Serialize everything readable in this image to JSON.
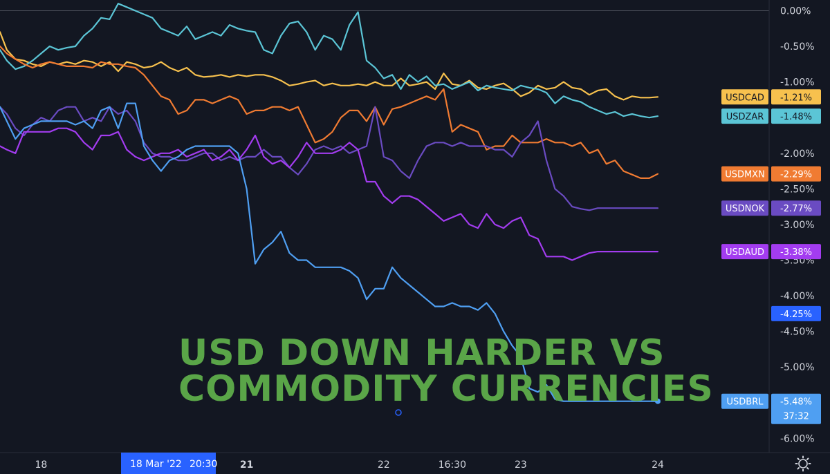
{
  "headline": {
    "line1": "USD DOWN HARDER VS",
    "line2": "COMMODITY CURRENCIES"
  },
  "crosshair": {
    "date_label": "18 Mar '22",
    "time_label": "20:30"
  },
  "countdown": "37:32",
  "colors": {
    "background": "#131722",
    "headline": "#5aa548",
    "USDCAD": "#f7c14e",
    "USDZAR": "#5bc5d6",
    "USDMXN": "#f07b32",
    "USDNOK": "#6a4bc2",
    "USDAUD": "#a33cf0",
    "USDBRL": "#4f9ff2",
    "crosshair_label": "#2962ff"
  },
  "settings_icon": "gear-icon",
  "chart_data": {
    "type": "line",
    "title": "USD DOWN HARDER VS COMMODITY CURRENCIES",
    "x_ticks": [
      {
        "label": "18",
        "x": 0,
        "bold": false
      },
      {
        "label": "21",
        "x": 12,
        "bold": true
      },
      {
        "label": "22",
        "x": 20,
        "bold": false
      },
      {
        "label": "16:30",
        "x": 24,
        "bold": false
      },
      {
        "label": "23",
        "x": 28,
        "bold": false
      },
      {
        "label": "24",
        "x": 36,
        "bold": false
      }
    ],
    "y_ticks": [
      "0.00%",
      "-0.50%",
      "-1.00%",
      "-2.00%",
      "-2.50%",
      "-3.00%",
      "-3.50%",
      "-4.00%",
      "-4.50%",
      "-5.00%",
      "-6.00%"
    ],
    "y_tick_values": [
      0,
      -0.5,
      -1.0,
      -2.0,
      -2.5,
      -3.0,
      -3.5,
      -4.0,
      -4.5,
      -5.0,
      -6.0
    ],
    "ylim": [
      -6.2,
      0.15
    ],
    "xlim": [
      -2.4,
      42.5
    ],
    "series": [
      {
        "name": "USDCAD",
        "last": "-1.21%",
        "last_value": -1.21,
        "x": [
          -2.4,
          -2,
          -1.5,
          -1,
          -0.5,
          0,
          0.5,
          1,
          1.5,
          2,
          2.5,
          3,
          3.5,
          4,
          4.5,
          5,
          5.5,
          6,
          6.5,
          7,
          7.5,
          8,
          8.5,
          9,
          9.5,
          10,
          10.5,
          11,
          11.5,
          12,
          12.5,
          13,
          13.5,
          14,
          14.5,
          15,
          15.5,
          16,
          16.5,
          17,
          17.5,
          18,
          18.5,
          19,
          19.5,
          20,
          20.5,
          21,
          21.5,
          22,
          22.5,
          23,
          23.5,
          24,
          24.5,
          25,
          25.5,
          26,
          26.5,
          27,
          27.5,
          28,
          28.5,
          29,
          29.5,
          30,
          30.5,
          31,
          31.5,
          32,
          32.5,
          33,
          33.5,
          34,
          34.5,
          35,
          35.5,
          36
        ],
        "y": [
          -0.3,
          -0.55,
          -0.68,
          -0.7,
          -0.75,
          -0.78,
          -0.72,
          -0.75,
          -0.72,
          -0.75,
          -0.7,
          -0.72,
          -0.78,
          -0.72,
          -0.85,
          -0.72,
          -0.75,
          -0.8,
          -0.78,
          -0.72,
          -0.8,
          -0.85,
          -0.8,
          -0.9,
          -0.93,
          -0.92,
          -0.9,
          -0.93,
          -0.9,
          -0.92,
          -0.9,
          -0.9,
          -0.93,
          -0.98,
          -1.05,
          -1.03,
          -1.0,
          -0.98,
          -1.05,
          -1.02,
          -1.05,
          -1.05,
          -1.03,
          -1.05,
          -1.0,
          -1.05,
          -1.05,
          -0.95,
          -1.05,
          -1.03,
          -1.0,
          -1.1,
          -0.88,
          -1.03,
          -1.05,
          -0.98,
          -1.08,
          -1.1,
          -1.05,
          -1.02,
          -1.1,
          -1.2,
          -1.15,
          -1.05,
          -1.1,
          -1.08,
          -1.0,
          -1.08,
          -1.1,
          -1.18,
          -1.12,
          -1.1,
          -1.2,
          -1.25,
          -1.2,
          -1.22,
          -1.22,
          -1.21
        ]
      },
      {
        "name": "USDZAR",
        "last": "-1.48%",
        "last_value": -1.48,
        "x": [
          -2.4,
          -2,
          -1.5,
          -1,
          -0.5,
          0,
          0.5,
          1,
          1.5,
          2,
          2.5,
          3,
          3.5,
          4,
          4.5,
          5,
          5.5,
          6,
          6.5,
          7,
          7.5,
          8,
          8.5,
          9,
          9.5,
          10,
          10.5,
          11,
          11.5,
          12,
          12.5,
          13,
          13.5,
          14,
          14.5,
          15,
          15.5,
          16,
          16.5,
          17,
          17.5,
          18,
          18.5,
          19,
          19.5,
          20,
          20.5,
          21,
          21.5,
          22,
          22.5,
          23,
          23.5,
          24,
          24.5,
          25,
          25.5,
          26,
          26.5,
          27,
          27.5,
          28,
          28.5,
          29,
          29.5,
          30,
          30.5,
          31,
          31.5,
          32,
          32.5,
          33,
          33.5,
          34,
          34.5,
          35,
          35.5,
          36
        ],
        "y": [
          -0.55,
          -0.7,
          -0.82,
          -0.78,
          -0.7,
          -0.6,
          -0.5,
          -0.55,
          -0.52,
          -0.5,
          -0.35,
          -0.25,
          -0.1,
          -0.12,
          0.1,
          0.05,
          0.0,
          -0.05,
          -0.1,
          -0.25,
          -0.3,
          -0.35,
          -0.22,
          -0.4,
          -0.35,
          -0.3,
          -0.35,
          -0.2,
          -0.25,
          -0.28,
          -0.3,
          -0.55,
          -0.6,
          -0.35,
          -0.18,
          -0.15,
          -0.3,
          -0.55,
          -0.35,
          -0.4,
          -0.55,
          -0.2,
          -0.02,
          -0.7,
          -0.8,
          -0.95,
          -0.9,
          -1.1,
          -0.9,
          -1.0,
          -0.92,
          -1.05,
          -1.03,
          -1.1,
          -1.05,
          -1.0,
          -1.12,
          -1.05,
          -1.08,
          -1.1,
          -1.12,
          -1.05,
          -1.08,
          -1.1,
          -1.15,
          -1.3,
          -1.2,
          -1.25,
          -1.28,
          -1.35,
          -1.4,
          -1.45,
          -1.42,
          -1.48,
          -1.45,
          -1.48,
          -1.5,
          -1.48
        ]
      },
      {
        "name": "USDMXN",
        "last": "-2.29%",
        "last_value": -2.29,
        "x": [
          -2.4,
          -2,
          -1.5,
          -1,
          -0.5,
          0,
          0.5,
          1,
          1.5,
          2,
          2.5,
          3,
          3.5,
          4,
          4.5,
          5,
          5.5,
          6,
          6.5,
          7,
          7.5,
          8,
          8.5,
          9,
          9.5,
          10,
          10.5,
          11,
          11.5,
          12,
          12.5,
          13,
          13.5,
          14,
          14.5,
          15,
          15.5,
          16,
          16.5,
          17,
          17.5,
          18,
          18.5,
          19,
          19.5,
          20,
          20.5,
          21,
          21.5,
          22,
          22.5,
          23,
          23.5,
          24,
          24.5,
          25,
          25.5,
          26,
          26.5,
          27,
          27.5,
          28,
          28.5,
          29,
          29.5,
          30,
          30.5,
          31,
          31.5,
          32,
          32.5,
          33,
          33.5,
          34,
          34.5,
          35,
          35.5,
          36
        ],
        "y": [
          -0.5,
          -0.6,
          -0.68,
          -0.75,
          -0.8,
          -0.75,
          -0.72,
          -0.75,
          -0.78,
          -0.78,
          -0.78,
          -0.8,
          -0.72,
          -0.75,
          -0.75,
          -0.78,
          -0.8,
          -0.9,
          -1.05,
          -1.2,
          -1.25,
          -1.45,
          -1.4,
          -1.25,
          -1.25,
          -1.3,
          -1.25,
          -1.2,
          -1.25,
          -1.45,
          -1.4,
          -1.4,
          -1.35,
          -1.35,
          -1.4,
          -1.35,
          -1.6,
          -1.85,
          -1.8,
          -1.7,
          -1.5,
          -1.4,
          -1.4,
          -1.55,
          -1.35,
          -1.6,
          -1.38,
          -1.35,
          -1.3,
          -1.25,
          -1.2,
          -1.25,
          -1.1,
          -1.7,
          -1.6,
          -1.65,
          -1.7,
          -1.95,
          -1.9,
          -1.9,
          -1.75,
          -1.85,
          -1.85,
          -1.85,
          -1.8,
          -1.85,
          -1.85,
          -1.9,
          -1.85,
          -2.0,
          -1.95,
          -2.15,
          -2.1,
          -2.25,
          -2.3,
          -2.35,
          -2.35,
          -2.29
        ]
      },
      {
        "name": "USDNOK",
        "last": "-2.77%",
        "last_value": -2.77,
        "x": [
          -2.4,
          -2,
          -1.5,
          -1,
          -0.5,
          0,
          0.5,
          1,
          1.5,
          2,
          2.5,
          3,
          3.5,
          4,
          4.5,
          5,
          5.5,
          6,
          6.5,
          7,
          7.5,
          8,
          8.5,
          9,
          9.5,
          10,
          10.5,
          11,
          11.5,
          12,
          12.5,
          13,
          13.5,
          14,
          14.5,
          15,
          15.5,
          16,
          16.5,
          17,
          17.5,
          18,
          18.5,
          19,
          19.5,
          20,
          20.5,
          21,
          21.5,
          22,
          22.5,
          23,
          23.5,
          24,
          24.5,
          25,
          25.5,
          26,
          26.5,
          27,
          27.5,
          28,
          28.5,
          29,
          29.5,
          30,
          30.5,
          31,
          31.5,
          32,
          32.5,
          33,
          33.5,
          34,
          34.5,
          35,
          35.5,
          36
        ],
        "y": [
          -1.35,
          -1.45,
          -1.65,
          -1.75,
          -1.6,
          -1.5,
          -1.55,
          -1.4,
          -1.35,
          -1.35,
          -1.55,
          -1.5,
          -1.55,
          -1.35,
          -1.45,
          -1.4,
          -1.55,
          -1.85,
          -2.0,
          -2.05,
          -2.05,
          -2.1,
          -2.1,
          -2.05,
          -2.0,
          -2.0,
          -2.1,
          -2.05,
          -2.1,
          -2.05,
          -2.05,
          -1.95,
          -2.05,
          -2.05,
          -2.2,
          -2.3,
          -2.15,
          -1.95,
          -1.9,
          -1.95,
          -1.9,
          -2.0,
          -1.95,
          -1.9,
          -1.35,
          -2.05,
          -2.1,
          -2.25,
          -2.35,
          -2.1,
          -1.9,
          -1.85,
          -1.85,
          -1.9,
          -1.85,
          -1.9,
          -1.9,
          -1.9,
          -1.95,
          -1.95,
          -2.05,
          -1.85,
          -1.75,
          -1.55,
          -2.1,
          -2.5,
          -2.6,
          -2.75,
          -2.78,
          -2.8,
          -2.77,
          -2.77,
          -2.77,
          -2.77,
          -2.77,
          -2.77,
          -2.77,
          -2.77
        ]
      },
      {
        "name": "USDAUD",
        "last": "-3.38%",
        "last_value": -3.38,
        "x": [
          -2.4,
          -2,
          -1.5,
          -1,
          -0.5,
          0,
          0.5,
          1,
          1.5,
          2,
          2.5,
          3,
          3.5,
          4,
          4.5,
          5,
          5.5,
          6,
          6.5,
          7,
          7.5,
          8,
          8.5,
          9,
          9.5,
          10,
          10.5,
          11,
          11.5,
          12,
          12.5,
          13,
          13.5,
          14,
          14.5,
          15,
          15.5,
          16,
          16.5,
          17,
          17.5,
          18,
          18.5,
          19,
          19.5,
          20,
          20.5,
          21,
          21.5,
          22,
          22.5,
          23,
          23.5,
          24,
          24.5,
          25,
          25.5,
          26,
          26.5,
          27,
          27.5,
          28,
          28.5,
          29,
          29.5,
          30,
          30.5,
          31,
          31.5,
          32,
          32.5,
          33,
          33.5,
          34,
          34.5,
          35,
          35.5,
          36
        ],
        "y": [
          -1.9,
          -1.95,
          -2.0,
          -1.7,
          -1.7,
          -1.7,
          -1.7,
          -1.65,
          -1.65,
          -1.7,
          -1.85,
          -1.95,
          -1.75,
          -1.75,
          -1.7,
          -1.95,
          -2.05,
          -2.1,
          -2.05,
          -2.0,
          -2.0,
          -1.95,
          -2.05,
          -2.0,
          -1.95,
          -2.1,
          -2.05,
          -1.95,
          -2.1,
          -1.95,
          -1.75,
          -2.05,
          -2.15,
          -2.1,
          -2.2,
          -2.05,
          -1.85,
          -2.0,
          -2.0,
          -2.0,
          -1.95,
          -1.85,
          -1.95,
          -2.4,
          -2.4,
          -2.6,
          -2.7,
          -2.6,
          -2.6,
          -2.65,
          -2.75,
          -2.85,
          -2.95,
          -2.9,
          -2.85,
          -3.0,
          -3.05,
          -2.85,
          -3.0,
          -3.05,
          -2.95,
          -2.9,
          -3.15,
          -3.2,
          -3.45,
          -3.45,
          -3.45,
          -3.5,
          -3.45,
          -3.4,
          -3.38,
          -3.38,
          -3.38,
          -3.38,
          -3.38,
          -3.38,
          -3.38,
          -3.38
        ]
      },
      {
        "name": "USDBRL",
        "last": "-5.48%",
        "last_value": -5.48,
        "x": [
          -2.4,
          -2,
          -1.5,
          -1,
          -0.5,
          0,
          0.5,
          1,
          1.5,
          2,
          2.5,
          3,
          3.5,
          4,
          4.5,
          5,
          5.5,
          6,
          6.5,
          7,
          7.5,
          8,
          8.5,
          9,
          9.5,
          10,
          10.5,
          11,
          11.5,
          12,
          12.5,
          13,
          13.5,
          14,
          14.5,
          15,
          15.5,
          16,
          16.5,
          17,
          17.5,
          18,
          18.5,
          19,
          19.5,
          20,
          20.5,
          21,
          21.5,
          22,
          22.5,
          23,
          23.5,
          24,
          24.5,
          25,
          25.5,
          26,
          26.5,
          27,
          27.5,
          28,
          28.5,
          29,
          29.5,
          30,
          30.5,
          31,
          31.5,
          32,
          32.5,
          33,
          33.5,
          34,
          34.5,
          35,
          35.5,
          36
        ],
        "y": [
          -1.35,
          -1.55,
          -1.8,
          -1.65,
          -1.6,
          -1.55,
          -1.55,
          -1.55,
          -1.55,
          -1.6,
          -1.55,
          -1.65,
          -1.4,
          -1.35,
          -1.65,
          -1.3,
          -1.3,
          -1.9,
          -2.1,
          -2.25,
          -2.1,
          -2.05,
          -1.95,
          -1.9,
          -1.9,
          -1.9,
          -1.9,
          -1.9,
          -2.0,
          -2.5,
          -3.55,
          -3.35,
          -3.25,
          -3.1,
          -3.4,
          -3.5,
          -3.5,
          -3.6,
          -3.6,
          -3.6,
          -3.6,
          -3.65,
          -3.75,
          -4.05,
          -3.9,
          -3.9,
          -3.6,
          -3.75,
          -3.85,
          -3.95,
          -4.05,
          -4.15,
          -4.15,
          -4.1,
          -4.15,
          -4.15,
          -4.2,
          -4.1,
          -4.25,
          -4.5,
          -4.7,
          -4.85,
          -5.3,
          -5.35,
          -5.25,
          -5.45,
          -5.48,
          -5.48,
          -5.48,
          -5.48,
          -5.48,
          -5.48,
          -5.48,
          -5.48,
          -5.48,
          -5.48,
          -5.48,
          -5.48
        ]
      }
    ],
    "extra_badges": [
      {
        "label": "-4.25%",
        "value": -4.25
      }
    ],
    "grid": false,
    "legend": "right"
  }
}
